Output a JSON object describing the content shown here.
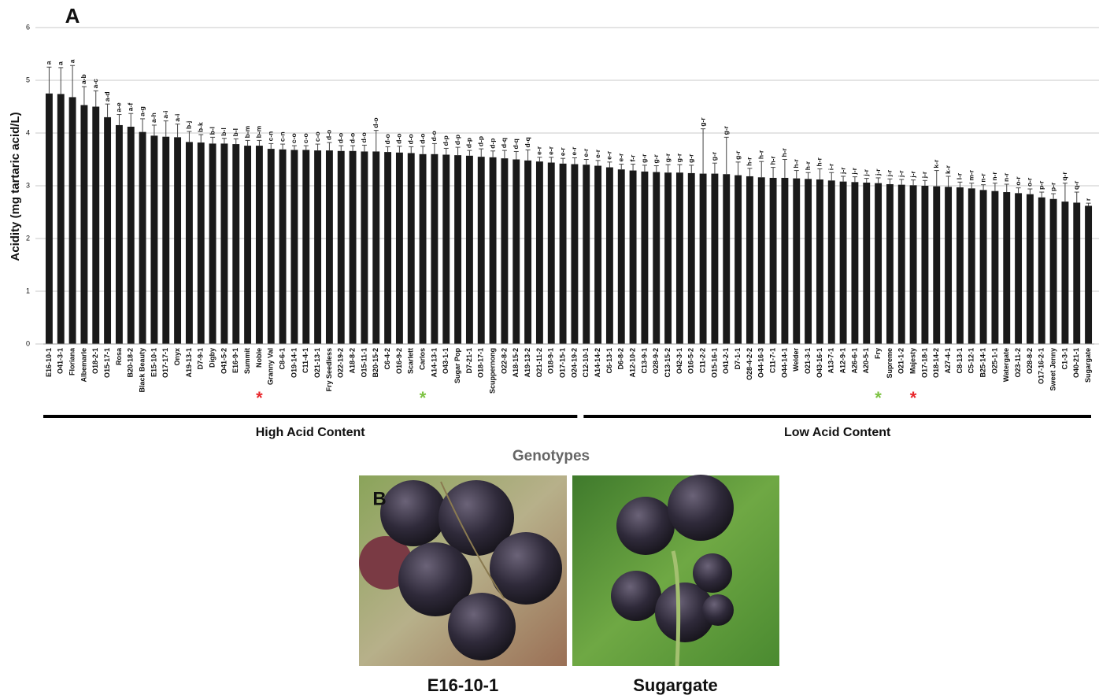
{
  "chart_data": {
    "type": "bar",
    "panel_label": "A",
    "y_label": "Acidity (mg tartaric acid/L)",
    "x_label": "Genotypes",
    "ylim": [
      0,
      6
    ],
    "yticks": [
      0,
      1,
      2,
      3,
      4,
      5,
      6
    ],
    "grid": true,
    "color": "#1a1a1a",
    "categories": [
      "E16-10-1",
      "O41-3-1",
      "Floriana",
      "Albemarle",
      "O18-2-1",
      "O15-17-1",
      "Rosa",
      "B20-18-2",
      "Black Beauty",
      "E15-10-1",
      "O17-17-1",
      "Onyx",
      "A19-13-1",
      "D7-9-1",
      "Digby",
      "O41-5-2",
      "E16-9-1",
      "Summit",
      "Noble",
      "Granny Val",
      "C8-6-1",
      "O19-14-1",
      "C11-4-1",
      "O21-13-1",
      "Fry Seedless",
      "O22-19-2",
      "A18-8-2",
      "O15-11-1",
      "B20-15-2",
      "C6-4-2",
      "O16-9-2",
      "Scarlett",
      "Carlos",
      "A14-13-1",
      "O43-1-1",
      "Sugar Pop",
      "D7-21-1",
      "O18-17-1",
      "Scuppernong",
      "O22-8-2",
      "A18-15-2",
      "A19-13-2",
      "O21-11-2",
      "O18-9-1",
      "O17-15-1",
      "O24-19-2",
      "C12-10-1",
      "A14-14-2",
      "C6-13-1",
      "D6-8-2",
      "A12-10-2",
      "C13-9-1",
      "O28-9-2",
      "C13-15-2",
      "O42-3-1",
      "O16-5-2",
      "C11-2-2",
      "O15-16-1",
      "O41-2-1",
      "D7-1-1",
      "O28-4-2-2",
      "O44-16-3",
      "C11-7-1",
      "O44-14-1",
      "Welder",
      "O21-3-1",
      "O43-16-1",
      "A13-7-1",
      "A12-9-1",
      "A26-6-1",
      "A20-5-1",
      "Fry",
      "Supreme",
      "O21-1-2",
      "Majesty",
      "O17-18-1",
      "O18-14-2",
      "A27-4-1",
      "C8-13-1",
      "C5-12-1",
      "B25-14-1",
      "O25-1-1",
      "Watergate",
      "O23-11-2",
      "O28-8-2",
      "O17-16-2-1",
      "Sweet Jenny",
      "C1-3-1",
      "O40-21-1",
      "Sugargate"
    ],
    "values": [
      4.75,
      4.74,
      4.68,
      4.53,
      4.5,
      4.3,
      4.15,
      4.12,
      4.02,
      3.95,
      3.93,
      3.92,
      3.83,
      3.82,
      3.8,
      3.8,
      3.79,
      3.76,
      3.76,
      3.7,
      3.69,
      3.68,
      3.68,
      3.67,
      3.67,
      3.66,
      3.66,
      3.65,
      3.65,
      3.64,
      3.63,
      3.62,
      3.6,
      3.6,
      3.59,
      3.58,
      3.57,
      3.55,
      3.54,
      3.52,
      3.5,
      3.48,
      3.46,
      3.44,
      3.42,
      3.41,
      3.4,
      3.38,
      3.35,
      3.31,
      3.29,
      3.27,
      3.26,
      3.25,
      3.25,
      3.24,
      3.23,
      3.23,
      3.22,
      3.2,
      3.18,
      3.16,
      3.15,
      3.15,
      3.14,
      3.13,
      3.12,
      3.1,
      3.08,
      3.07,
      3.06,
      3.05,
      3.03,
      3.02,
      3.01,
      3.0,
      2.99,
      2.98,
      2.97,
      2.95,
      2.92,
      2.9,
      2.88,
      2.86,
      2.84,
      2.78,
      2.75,
      2.7,
      2.68,
      2.62
    ],
    "errors": [
      0.5,
      0.5,
      0.6,
      0.35,
      0.3,
      0.25,
      0.2,
      0.25,
      0.25,
      0.2,
      0.3,
      0.25,
      0.2,
      0.15,
      0.12,
      0.1,
      0.1,
      0.1,
      0.1,
      0.1,
      0.1,
      0.08,
      0.08,
      0.12,
      0.15,
      0.1,
      0.1,
      0.12,
      0.4,
      0.1,
      0.12,
      0.12,
      0.15,
      0.2,
      0.12,
      0.15,
      0.1,
      0.15,
      0.12,
      0.15,
      0.15,
      0.2,
      0.08,
      0.1,
      0.1,
      0.12,
      0.1,
      0.1,
      0.1,
      0.1,
      0.12,
      0.12,
      0.12,
      0.15,
      0.15,
      0.15,
      0.85,
      0.2,
      0.7,
      0.25,
      0.15,
      0.3,
      0.2,
      0.35,
      0.15,
      0.12,
      0.2,
      0.15,
      0.1,
      0.1,
      0.08,
      0.1,
      0.1,
      0.1,
      0.1,
      0.1,
      0.3,
      0.2,
      0.1,
      0.1,
      0.1,
      0.15,
      0.15,
      0.1,
      0.1,
      0.1,
      0.1,
      0.35,
      0.2,
      0.05
    ],
    "value_letters": [
      "a",
      "a",
      "a",
      "a-b",
      "a-c",
      "a-d",
      "a-e",
      "a-f",
      "a-g",
      "a-h",
      "a-i",
      "a-i",
      "b-j",
      "b-k",
      "b-l",
      "b-l",
      "b-l",
      "b-m",
      "b-m",
      "c-n",
      "c-n",
      "c-o",
      "c-o",
      "c-o",
      "d-o",
      "d-o",
      "d-o",
      "d-o",
      "d-o",
      "d-o",
      "d-o",
      "d-o",
      "d-o",
      "d-o",
      "d-p",
      "d-p",
      "d-p",
      "d-p",
      "d-p",
      "d-q",
      "d-q",
      "d-q",
      "e-r",
      "e-r",
      "e-r",
      "e-r",
      "e-r",
      "e-r",
      "e-r",
      "e-r",
      "f-r",
      "g-r",
      "g-r",
      "g-r",
      "g-r",
      "g-r",
      "g-r",
      "g-r",
      "g-r",
      "g-r",
      "h-r",
      "h-r",
      "h-r",
      "h-r",
      "h-r",
      "h-r",
      "h-r",
      "i-r",
      "j-r",
      "j-r",
      "j-r",
      "j-r",
      "j-r",
      "j-r",
      "j-r",
      "j-r",
      "k-r",
      "k-r",
      "l-r",
      "m-r",
      "n-r",
      "n-r",
      "n-r",
      "o-r",
      "o-r",
      "p-r",
      "p-r",
      "q-r",
      "q-r",
      "r"
    ],
    "annotations": [
      {
        "text": "*",
        "color": "#e8262b",
        "category": "Noble"
      },
      {
        "text": "*",
        "color": "#7cc242",
        "category": "Carlos"
      },
      {
        "text": "*",
        "color": "#7cc242",
        "category": "Fry"
      },
      {
        "text": "*",
        "color": "#e8262b",
        "category": "Majesty"
      }
    ],
    "groups": [
      {
        "label": "High Acid Content",
        "from": "E16-10-1",
        "to": "O24-19-2"
      },
      {
        "label": "Low Acid Content",
        "from": "C12-10-1",
        "to": "Sugargate"
      }
    ]
  },
  "photos": {
    "panel_label": "B",
    "captions": [
      "E16-10-1",
      "Sugargate"
    ]
  }
}
